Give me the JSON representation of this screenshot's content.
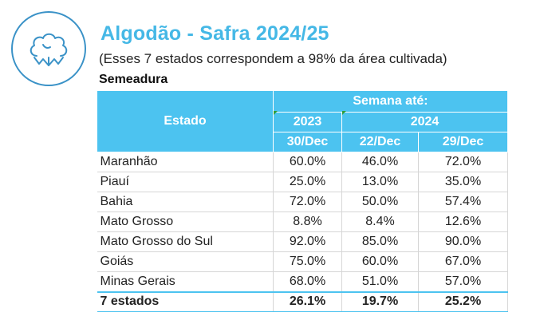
{
  "header": {
    "logo_icon": "cotton-icon",
    "title": "Algodão - Safra 2024/25",
    "subtitle": "(Esses 7 estados correspondem a 98% da área cultivada)",
    "section": "Semeadura"
  },
  "table": {
    "col_estado": "Estado",
    "group_header": "Semana até:",
    "year_2023": "2023",
    "year_2024": "2024",
    "dates": [
      "30/Dec",
      "22/Dec",
      "29/Dec"
    ],
    "rows": [
      {
        "estado": "Maranhão",
        "v": [
          "60.0%",
          "46.0%",
          "72.0%"
        ]
      },
      {
        "estado": "Piauí",
        "v": [
          "25.0%",
          "13.0%",
          "35.0%"
        ]
      },
      {
        "estado": "Bahia",
        "v": [
          "72.0%",
          "50.0%",
          "57.4%"
        ]
      },
      {
        "estado": "Mato Grosso",
        "v": [
          "8.8%",
          "8.4%",
          "12.6%"
        ]
      },
      {
        "estado": "Mato Grosso do Sul",
        "v": [
          "92.0%",
          "85.0%",
          "90.0%"
        ]
      },
      {
        "estado": "Goiás",
        "v": [
          "75.0%",
          "60.0%",
          "67.0%"
        ]
      },
      {
        "estado": "Minas Gerais",
        "v": [
          "68.0%",
          "51.0%",
          "57.0%"
        ]
      }
    ],
    "total": {
      "estado": "7 estados",
      "v": [
        "26.1%",
        "19.7%",
        "25.2%"
      ]
    }
  },
  "colors": {
    "accent": "#4cc3f0",
    "title": "#45b8e6",
    "logo": "#3a92c7"
  }
}
